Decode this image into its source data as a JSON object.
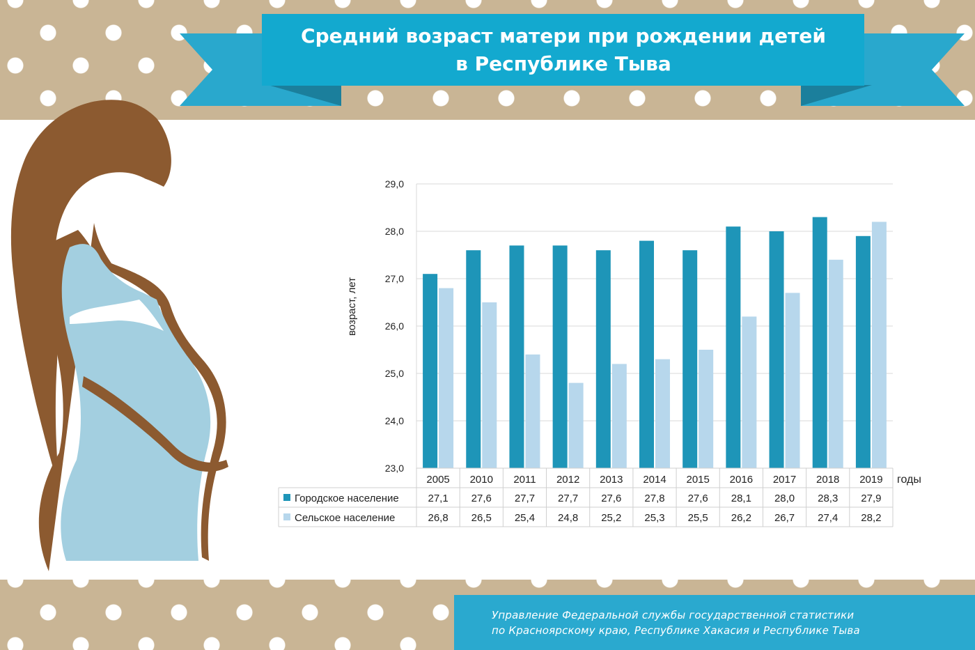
{
  "title": {
    "line1": "Средний возраст матери при рождении детей",
    "line2": "в Республике Тыва"
  },
  "footer": {
    "line1": "Управление Федеральной службы государственной статистики",
    "line2": "по Красноярскому краю, Республике Хакасия и Республике Тыва"
  },
  "colors": {
    "accent": "#29a8cd",
    "urban": "#1e95b8",
    "rural": "#b7d7ec",
    "band": "#c9b595"
  },
  "chart_data": {
    "type": "bar",
    "categories": [
      "2005",
      "2010",
      "2011",
      "2012",
      "2013",
      "2014",
      "2015",
      "2016",
      "2017",
      "2018",
      "2019"
    ],
    "series": [
      {
        "name": "Городское население",
        "values": [
          27.1,
          27.6,
          27.7,
          27.7,
          27.6,
          27.8,
          27.6,
          28.1,
          28.0,
          28.3,
          27.9
        ],
        "labels": [
          "27,1",
          "27,6",
          "27,7",
          "27,7",
          "27,6",
          "27,8",
          "27,6",
          "28,1",
          "28,0",
          "28,3",
          "27,9"
        ]
      },
      {
        "name": "Сельское население",
        "values": [
          26.8,
          26.5,
          25.4,
          24.8,
          25.2,
          25.3,
          25.5,
          26.2,
          26.7,
          27.4,
          28.2
        ],
        "labels": [
          "26,8",
          "26,5",
          "25,4",
          "24,8",
          "25,2",
          "25,3",
          "25,5",
          "26,2",
          "26,7",
          "27,4",
          "28,2"
        ]
      }
    ],
    "ylabel": "возраст, лет",
    "xlabel": "годы",
    "ylim": [
      23,
      29
    ],
    "yticks": [
      "23,0",
      "24,0",
      "25,0",
      "26,0",
      "27,0",
      "28,0",
      "29,0"
    ],
    "grid": true,
    "legend": "data-table"
  }
}
